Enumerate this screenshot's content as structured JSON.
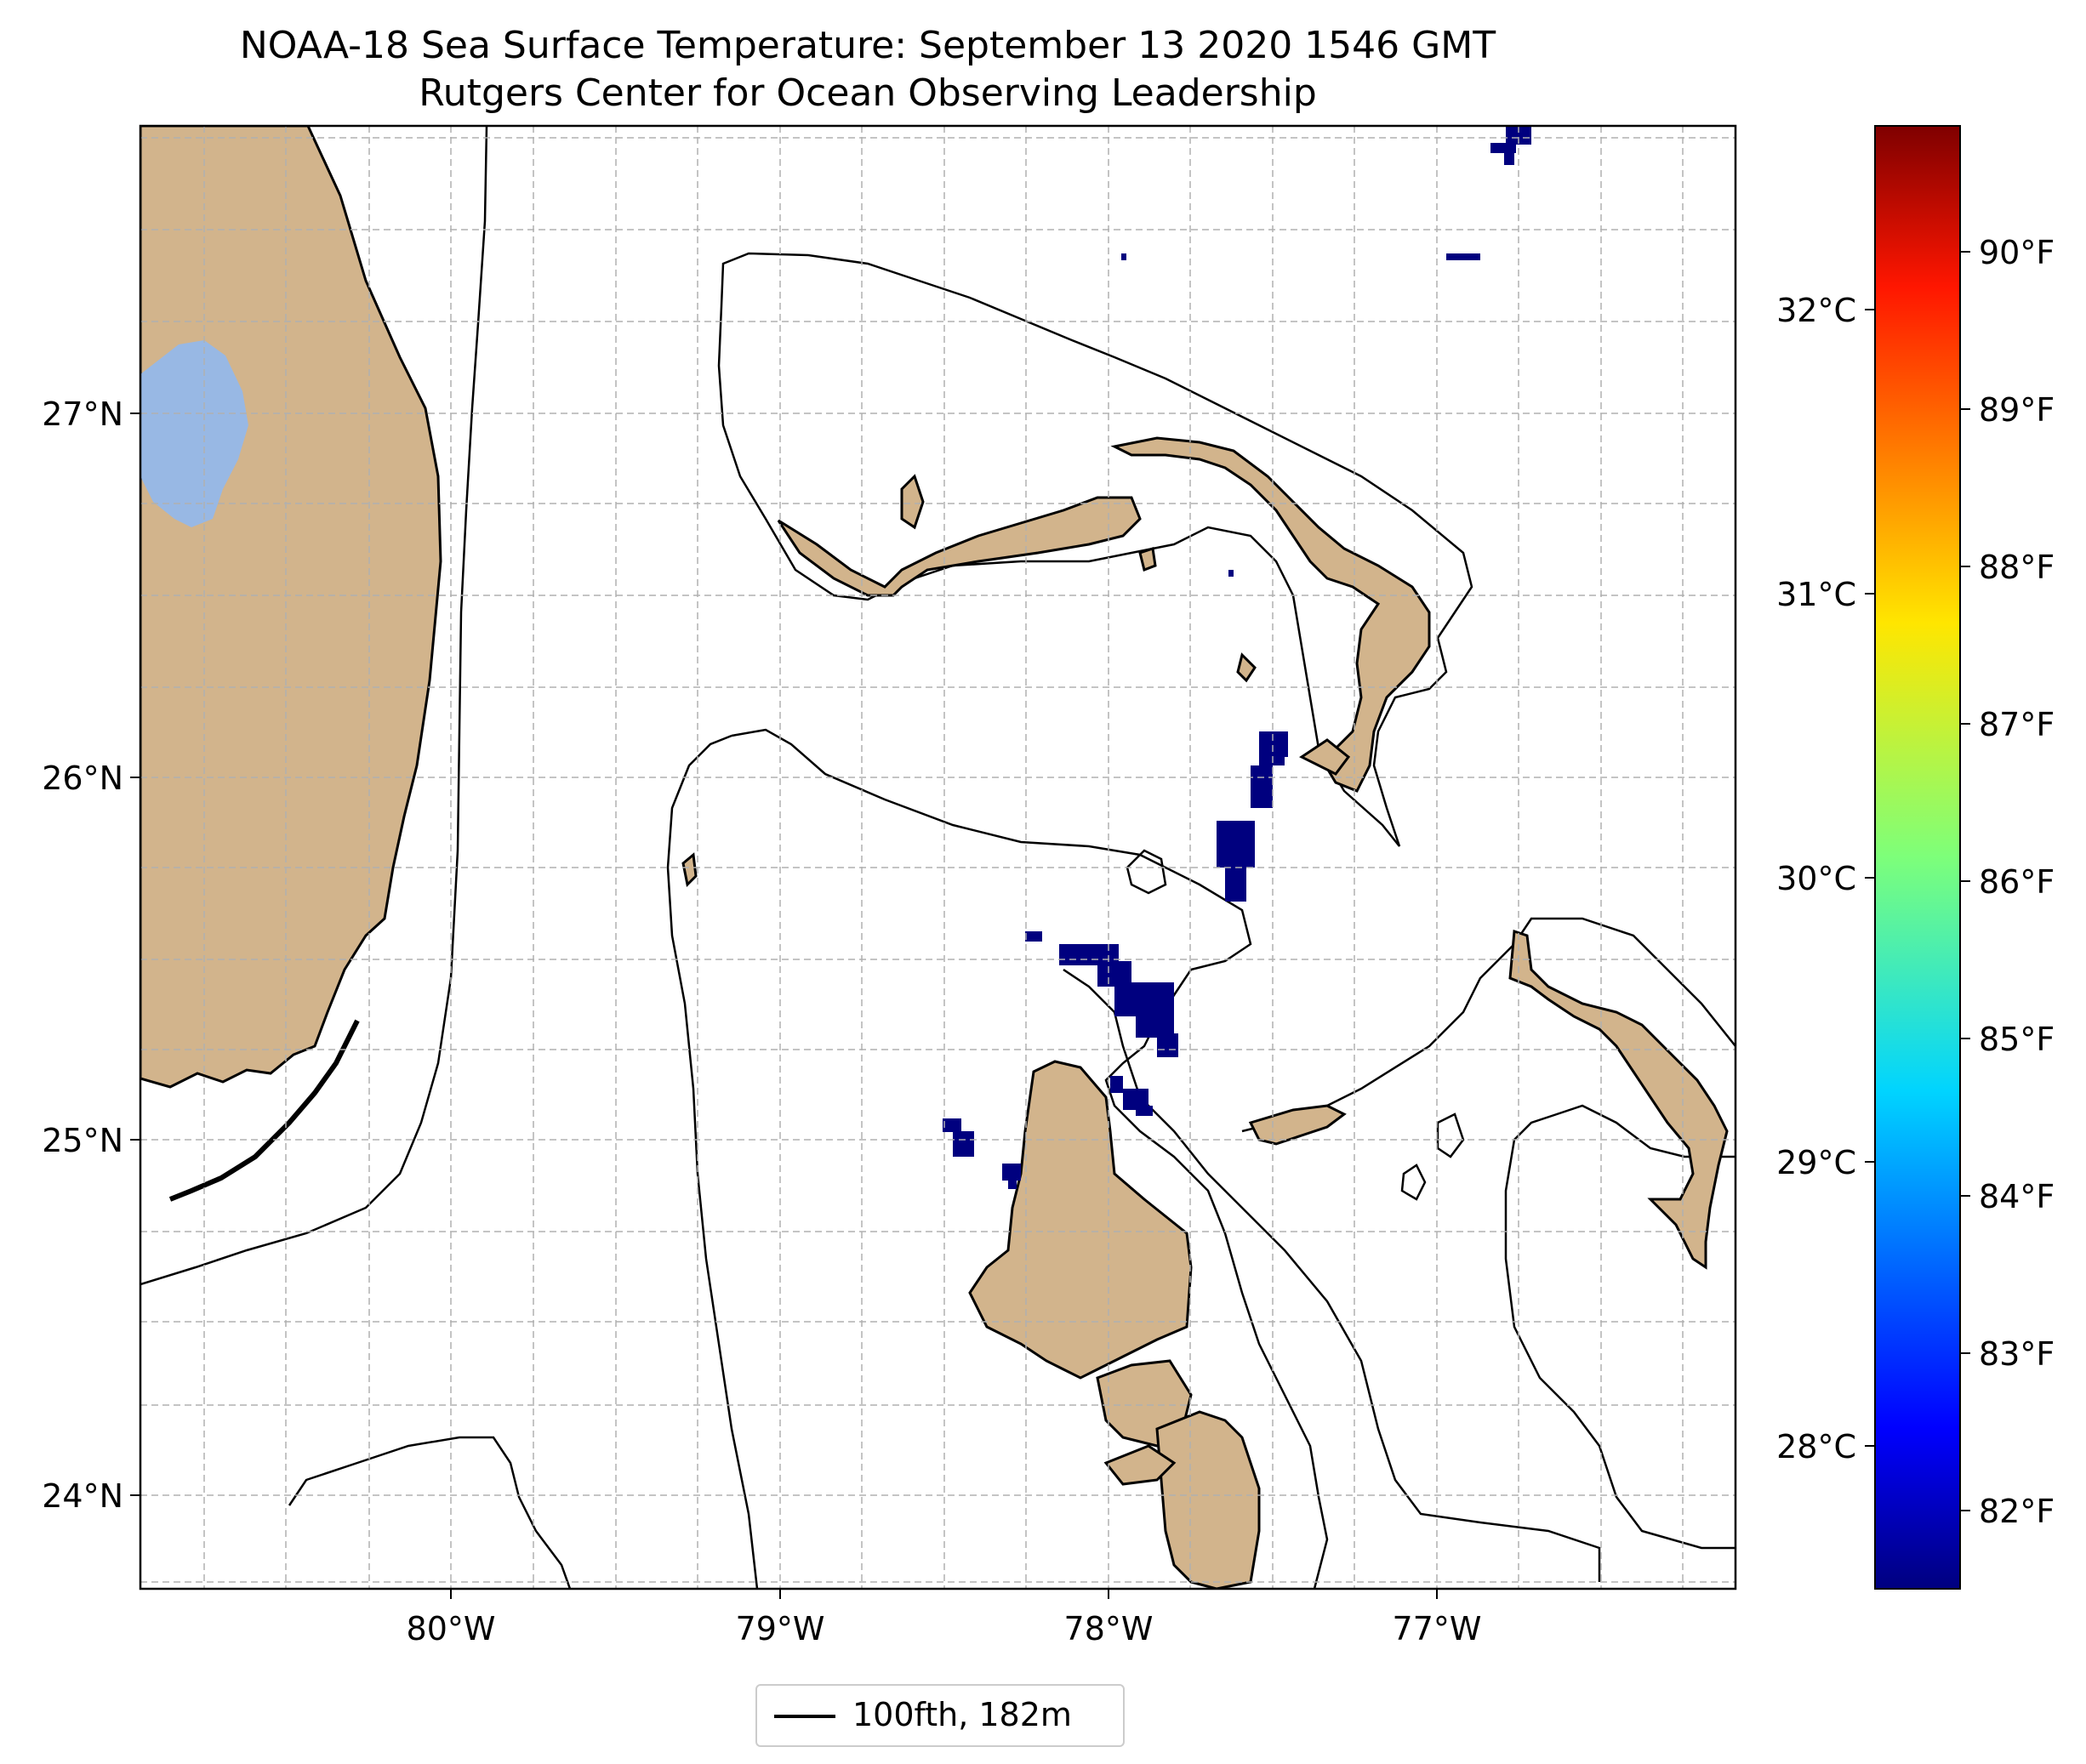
{
  "title": "NOAA-18 Sea Surface Temperature: September 13 2020 1546 GMT",
  "subtitle": "Rutgers Center for Ocean Observing Leadership",
  "map": {
    "lat_labels": [
      "27°N",
      "26°N",
      "25°N",
      "24°N"
    ],
    "lon_labels": [
      "80°W",
      "79°W",
      "78°W",
      "77°W"
    ],
    "land_color": "#d2b48c",
    "lake_color": "#98b8e4",
    "sst_color": "#00007f",
    "grid": "dashed"
  },
  "colorbar": {
    "celsius_labels": [
      "32°C",
      "31°C",
      "30°C",
      "29°C",
      "28°C"
    ],
    "fahrenheit_labels": [
      "90°F",
      "89°F",
      "88°F",
      "87°F",
      "86°F",
      "85°F",
      "84°F",
      "83°F",
      "82°F"
    ],
    "colormap": "jet"
  },
  "legend": {
    "label": "100fth, 182m"
  }
}
